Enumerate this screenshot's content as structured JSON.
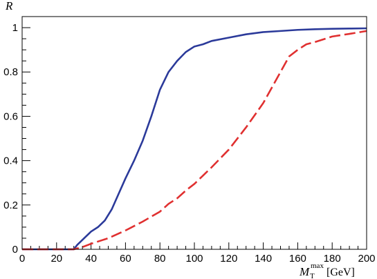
{
  "chart_data": {
    "type": "line",
    "ylabel": "R",
    "xlabel": {
      "symbol": "M",
      "subscript": "T",
      "superscript": "max",
      "unit": "[GeV]"
    },
    "xlim": [
      0,
      200
    ],
    "ylim": [
      0,
      1.05
    ],
    "x_ticks": [
      "0",
      "20",
      "40",
      "60",
      "80",
      "100",
      "120",
      "140",
      "160",
      "180",
      "200"
    ],
    "y_ticks": [
      "0",
      "0.2",
      "0.4",
      "0.6",
      "0.8",
      "1"
    ],
    "grid": false,
    "series": [
      {
        "style": "solid",
        "color": "#2b3a9a",
        "x": [
          0,
          30,
          32,
          36,
          40,
          44,
          48,
          52,
          56,
          60,
          65,
          70,
          75,
          80,
          85,
          90,
          95,
          100,
          105,
          110,
          120,
          130,
          140,
          150,
          160,
          170,
          180,
          190,
          200
        ],
        "y": [
          0,
          0,
          0.02,
          0.05,
          0.08,
          0.1,
          0.13,
          0.18,
          0.25,
          0.32,
          0.4,
          0.49,
          0.6,
          0.72,
          0.8,
          0.85,
          0.89,
          0.915,
          0.925,
          0.94,
          0.955,
          0.97,
          0.98,
          0.985,
          0.99,
          0.993,
          0.995,
          0.996,
          0.997
        ]
      },
      {
        "style": "dashed",
        "color": "#e03030",
        "x": [
          0,
          30,
          35,
          40,
          50,
          60,
          70,
          80,
          85,
          90,
          95,
          100,
          110,
          120,
          130,
          140,
          145,
          150,
          155,
          160,
          165,
          170,
          180,
          190,
          200
        ],
        "y": [
          0,
          0,
          0.01,
          0.025,
          0.05,
          0.085,
          0.125,
          0.17,
          0.205,
          0.23,
          0.265,
          0.295,
          0.37,
          0.45,
          0.55,
          0.66,
          0.73,
          0.8,
          0.87,
          0.9,
          0.925,
          0.935,
          0.96,
          0.972,
          0.985
        ]
      }
    ]
  }
}
